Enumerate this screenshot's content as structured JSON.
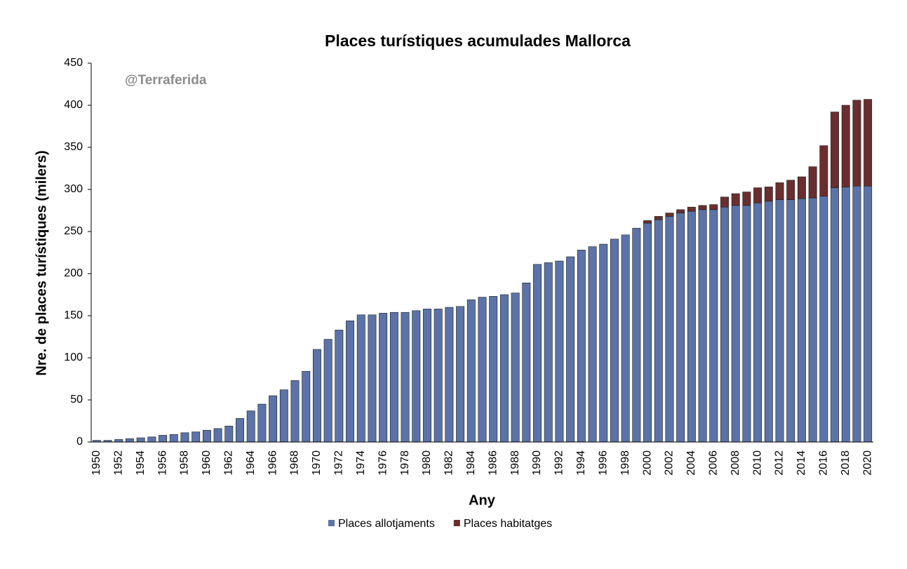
{
  "chart_data": {
    "type": "stacked_bar",
    "title": "Places turístiques acumulades Mallorca",
    "annotation": "@Terraferida",
    "x_label": "Any",
    "y_label": "Nre. de places turístiques (milers)",
    "categories": [
      "1950",
      null,
      "1952",
      null,
      "1954",
      null,
      "1956",
      null,
      "1958",
      null,
      "1960",
      null,
      "1962",
      null,
      "1964",
      null,
      "1966",
      null,
      "1968",
      null,
      "1970",
      null,
      "1972",
      null,
      "1974",
      null,
      "1976",
      null,
      "1978",
      null,
      "1980",
      null,
      "1982",
      null,
      "1984",
      null,
      "1986",
      null,
      "1988",
      null,
      "1990",
      null,
      "1992",
      null,
      "1994",
      null,
      "1996",
      null,
      "1998",
      null,
      "2000",
      null,
      "2002",
      null,
      "2004",
      null,
      "2006",
      null,
      "2008",
      null,
      "2010",
      null,
      "2012",
      null,
      "2014",
      null,
      "2016",
      null,
      "2018",
      null,
      "2020"
    ],
    "series": [
      {
        "name": "Places allotjaments",
        "color": "#5b73a8",
        "values": [
          2,
          2,
          3,
          4,
          5,
          6,
          8,
          9,
          11,
          12,
          14,
          16,
          19,
          28,
          37,
          45,
          55,
          62,
          73,
          84,
          110,
          122,
          133,
          144,
          151,
          151,
          153,
          154,
          154,
          156,
          158,
          158,
          160,
          161,
          169,
          172,
          173,
          175,
          177,
          189,
          211,
          213,
          215,
          220,
          228,
          232,
          235,
          241,
          246,
          254,
          260,
          264,
          268,
          272,
          274,
          276,
          276,
          279,
          281,
          281,
          284,
          286,
          288,
          288,
          289,
          290,
          292,
          302,
          303,
          304,
          304
        ]
      },
      {
        "name": "Places habitatges",
        "color": "#6b2e2e",
        "values": [
          0,
          0,
          0,
          0,
          0,
          0,
          0,
          0,
          0,
          0,
          0,
          0,
          0,
          0,
          0,
          0,
          0,
          0,
          0,
          0,
          0,
          0,
          0,
          0,
          0,
          0,
          0,
          0,
          0,
          0,
          0,
          0,
          0,
          0,
          0,
          0,
          0,
          0,
          0,
          0,
          0,
          0,
          0,
          0,
          0,
          0,
          0,
          0,
          0,
          0,
          3,
          4,
          4,
          4,
          5,
          5,
          6,
          12,
          14,
          16,
          18,
          17,
          20,
          23,
          26,
          37,
          60,
          90,
          97,
          102,
          103
        ]
      }
    ],
    "ylim": [
      0,
      450
    ],
    "yticks": [
      0,
      50,
      100,
      150,
      200,
      250,
      300,
      350,
      400,
      450
    ],
    "grid": false,
    "legend": "bottom"
  }
}
